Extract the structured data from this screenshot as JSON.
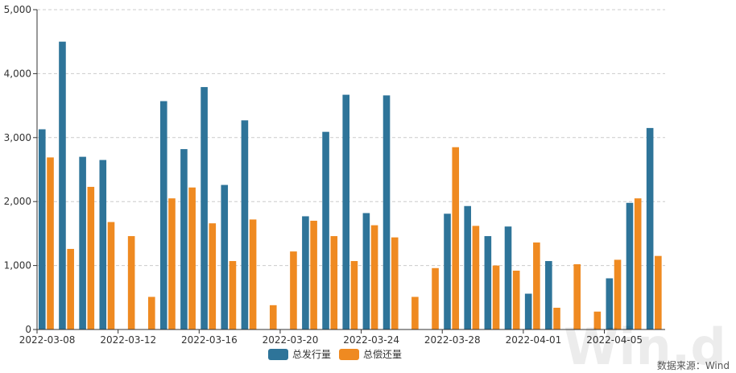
{
  "chart_data": {
    "type": "bar",
    "categories": [
      "2022-03-08",
      "2022-03-09",
      "2022-03-10",
      "2022-03-11",
      "2022-03-12",
      "2022-03-13",
      "2022-03-14",
      "2022-03-15",
      "2022-03-16",
      "2022-03-17",
      "2022-03-18",
      "2022-03-19",
      "2022-03-20",
      "2022-03-21",
      "2022-03-22",
      "2022-03-23",
      "2022-03-24",
      "2022-03-25",
      "2022-03-26",
      "2022-03-27",
      "2022-03-28",
      "2022-03-29",
      "2022-03-30",
      "2022-03-31",
      "2022-04-01",
      "2022-04-02",
      "2022-04-03",
      "2022-04-04",
      "2022-04-05",
      "2022-04-06",
      "2022-04-07"
    ],
    "x_tick_labels": [
      "2022-03-08",
      "2022-03-12",
      "2022-03-16",
      "2022-03-20",
      "2022-03-24",
      "2022-03-28",
      "2022-04-01",
      "2022-04-05"
    ],
    "series": [
      {
        "name": "总发行量",
        "color": "#2e7499",
        "values": [
          3130,
          4500,
          2700,
          2650,
          0,
          0,
          3570,
          2820,
          3790,
          2260,
          3270,
          0,
          0,
          1770,
          3090,
          3670,
          1820,
          3660,
          0,
          0,
          1810,
          1930,
          1460,
          1610,
          560,
          1070,
          0,
          0,
          800,
          1980,
          3150
        ]
      },
      {
        "name": "总偿还量",
        "color": "#ef8a21",
        "values": [
          2690,
          1260,
          2230,
          1680,
          1460,
          510,
          2050,
          2220,
          1660,
          1070,
          1720,
          380,
          1220,
          1700,
          1460,
          1070,
          1630,
          1440,
          510,
          960,
          2850,
          1620,
          1000,
          920,
          1360,
          340,
          1020,
          280,
          1090,
          2050,
          1150
        ]
      }
    ],
    "y_ticks": [
      "0",
      "1,000",
      "2,000",
      "3,000",
      "4,000",
      "5,000"
    ],
    "ylim": [
      0,
      5000
    ],
    "grid": true,
    "legend": "bottom-center",
    "title": "",
    "xlabel": "",
    "ylabel": ""
  },
  "source_note": "数据来源：Wind",
  "watermark_text": "Win.d"
}
